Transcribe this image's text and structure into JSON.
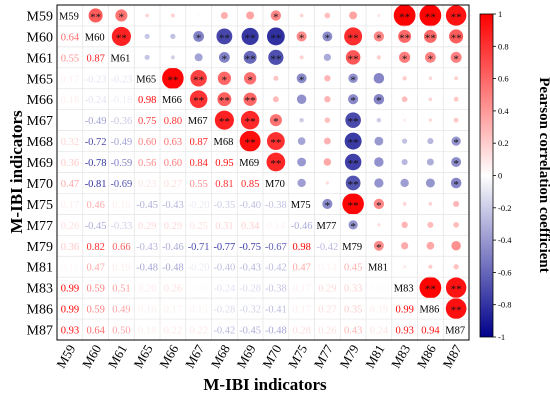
{
  "chart_data": {
    "type": "heatmap",
    "subtype": "correlogram-mixed (upper: circles with significance stars, lower: coefficient numbers, diagonal: variable names)",
    "variables": [
      "M59",
      "M60",
      "M61",
      "M65",
      "M66",
      "M67",
      "M68",
      "M69",
      "M70",
      "M75",
      "M77",
      "M79",
      "M81",
      "M83",
      "M86",
      "M87"
    ],
    "xlabel": "M-IBI indicators",
    "ylabel": "M-IBI indicators",
    "colorbar": {
      "label": "Pearson correlation coefficient",
      "range": [
        -1,
        1
      ],
      "ticks": [
        "1",
        "0.8",
        "0.6",
        "0.4",
        "0.2",
        "0",
        "-0.2",
        "-0.4",
        "-0.6",
        "-0.8",
        "-1"
      ],
      "colors": {
        "positive": "#ff0000",
        "zero": "#ffffff",
        "negative": "#00008b"
      }
    },
    "matrix": [
      [
        1.0,
        0.64,
        0.55,
        0.17,
        0.18,
        0.02,
        0.32,
        0.36,
        0.47,
        0.17,
        0.26,
        0.36,
        0.11,
        0.99,
        0.99,
        0.93
      ],
      [
        0.64,
        1.0,
        0.87,
        -0.23,
        -0.24,
        -0.49,
        -0.72,
        -0.78,
        -0.81,
        0.46,
        -0.45,
        0.82,
        0.47,
        0.59,
        0.59,
        0.64
      ],
      [
        0.55,
        0.87,
        1.0,
        -0.23,
        -0.18,
        -0.36,
        -0.49,
        -0.59,
        -0.69,
        0.18,
        -0.33,
        0.66,
        0.19,
        0.51,
        0.49,
        0.5
      ],
      [
        0.17,
        -0.23,
        -0.23,
        1.0,
        0.98,
        0.75,
        0.6,
        0.56,
        0.23,
        -0.45,
        0.29,
        -0.43,
        -0.48,
        0.2,
        0.16,
        0.18
      ],
      [
        0.18,
        -0.24,
        -0.18,
        0.98,
        1.0,
        0.8,
        0.63,
        0.6,
        0.27,
        -0.43,
        0.29,
        -0.46,
        -0.48,
        0.26,
        0.17,
        0.22
      ],
      [
        0.02,
        -0.49,
        -0.36,
        0.75,
        0.8,
        1.0,
        0.87,
        0.84,
        0.55,
        -0.2,
        0.25,
        -0.71,
        -0.2,
        0.08,
        0.15,
        0.22
      ],
      [
        0.32,
        -0.72,
        -0.49,
        0.6,
        0.63,
        0.87,
        1.0,
        0.95,
        0.81,
        -0.35,
        0.31,
        -0.77,
        -0.4,
        -0.24,
        -0.28,
        -0.42
      ],
      [
        0.36,
        -0.78,
        -0.59,
        0.56,
        0.6,
        0.84,
        0.95,
        1.0,
        0.85,
        -0.4,
        0.34,
        -0.75,
        -0.43,
        -0.28,
        -0.32,
        -0.45
      ],
      [
        0.47,
        -0.81,
        -0.69,
        0.23,
        0.27,
        0.55,
        0.81,
        0.85,
        1.0,
        -0.38,
        0.14,
        -0.67,
        -0.42,
        -0.38,
        -0.41,
        -0.48
      ],
      [
        0.17,
        0.46,
        0.18,
        -0.45,
        -0.43,
        -0.2,
        -0.35,
        -0.4,
        -0.38,
        1.0,
        -0.46,
        0.98,
        0.47,
        0.17,
        0.17,
        0.28
      ],
      [
        0.26,
        -0.45,
        -0.33,
        0.29,
        0.29,
        0.25,
        0.31,
        0.34,
        0.14,
        -0.46,
        1.0,
        -0.42,
        0.14,
        0.29,
        0.27,
        0.26
      ],
      [
        0.36,
        0.82,
        0.66,
        -0.43,
        -0.46,
        -0.71,
        -0.77,
        -0.75,
        -0.67,
        0.98,
        -0.42,
        1.0,
        0.45,
        0.33,
        0.35,
        0.43
      ],
      [
        0.11,
        0.47,
        0.19,
        -0.48,
        -0.48,
        -0.2,
        -0.4,
        -0.43,
        -0.42,
        0.47,
        0.14,
        0.45,
        1.0,
        0.09,
        0.19,
        0.24
      ],
      [
        0.99,
        0.59,
        0.51,
        0.2,
        0.26,
        0.08,
        -0.24,
        -0.28,
        -0.38,
        0.17,
        0.29,
        0.33,
        0.09,
        1.0,
        0.99,
        0.93
      ],
      [
        0.99,
        0.59,
        0.49,
        0.16,
        0.17,
        0.15,
        -0.28,
        -0.32,
        -0.41,
        0.17,
        0.27,
        0.35,
        0.19,
        0.99,
        1.0,
        0.94
      ],
      [
        0.93,
        0.64,
        0.5,
        0.18,
        0.22,
        0.22,
        -0.42,
        -0.45,
        -0.48,
        0.28,
        0.26,
        0.43,
        0.24,
        0.93,
        0.94,
        1.0
      ]
    ],
    "significance": [
      [
        null,
        "**",
        "*",
        "",
        "",
        "",
        "",
        "",
        "*",
        "",
        "",
        "",
        "",
        "**",
        "**",
        "**"
      ],
      [
        null,
        null,
        "**",
        "",
        "",
        "*",
        "**",
        "**",
        "**",
        "*",
        "*",
        "**",
        "*",
        "**",
        "**",
        "**"
      ],
      [
        null,
        null,
        null,
        "",
        "",
        "",
        "*",
        "**",
        "**",
        "",
        "",
        "**",
        "",
        "*",
        "*",
        "*"
      ],
      [
        null,
        null,
        null,
        null,
        "**",
        "**",
        "*",
        "*",
        "",
        "*",
        "",
        "*",
        "",
        "",
        "",
        ""
      ],
      [
        null,
        null,
        null,
        null,
        null,
        "**",
        "**",
        "**",
        "",
        "",
        "",
        "*",
        "*",
        "",
        "",
        ""
      ],
      [
        null,
        null,
        null,
        null,
        null,
        null,
        "**",
        "**",
        "*",
        "",
        "",
        "**",
        "",
        "",
        "",
        ""
      ],
      [
        null,
        null,
        null,
        null,
        null,
        null,
        null,
        "**",
        "**",
        "",
        "",
        "**",
        "",
        "",
        "",
        "*"
      ],
      [
        null,
        null,
        null,
        null,
        null,
        null,
        null,
        null,
        "**",
        "",
        "",
        "**",
        "",
        "",
        "",
        "*"
      ],
      [
        null,
        null,
        null,
        null,
        null,
        null,
        null,
        null,
        null,
        "",
        "",
        "**",
        "",
        "",
        "",
        "*"
      ],
      [
        null,
        null,
        null,
        null,
        null,
        null,
        null,
        null,
        null,
        null,
        "*",
        "**",
        "*",
        "",
        "",
        ""
      ],
      [
        null,
        null,
        null,
        null,
        null,
        null,
        null,
        null,
        null,
        null,
        null,
        "*",
        "",
        "",
        "",
        ""
      ],
      [
        null,
        null,
        null,
        null,
        null,
        null,
        null,
        null,
        null,
        null,
        null,
        null,
        "*",
        "",
        "",
        ""
      ],
      [
        null,
        null,
        null,
        null,
        null,
        null,
        null,
        null,
        null,
        null,
        null,
        null,
        null,
        "",
        "",
        ""
      ],
      [
        null,
        null,
        null,
        null,
        null,
        null,
        null,
        null,
        null,
        null,
        null,
        null,
        null,
        null,
        "**",
        "**"
      ],
      [
        null,
        null,
        null,
        null,
        null,
        null,
        null,
        null,
        null,
        null,
        null,
        null,
        null,
        null,
        null,
        "**"
      ],
      [
        null,
        null,
        null,
        null,
        null,
        null,
        null,
        null,
        null,
        null,
        null,
        null,
        null,
        null,
        null,
        null
      ]
    ]
  }
}
